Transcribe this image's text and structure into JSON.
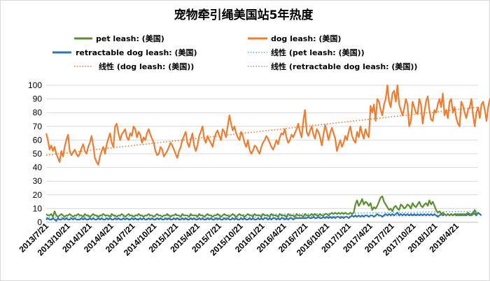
{
  "chart_data": {
    "type": "line",
    "title": "宠物牵引绳美国站5年热度",
    "xlabel": "",
    "ylabel": "",
    "ylim": [
      0,
      100
    ],
    "yticks": [
      0,
      10,
      20,
      30,
      40,
      50,
      60,
      70,
      80,
      90,
      100
    ],
    "grid": "horizontal",
    "legend_position": "top",
    "x_tick_labels": [
      "2013/7/21",
      "2013/10/21",
      "2014/1/21",
      "2014/4/21",
      "2014/7/21",
      "2014/10/21",
      "2015/1/21",
      "2015/4/21",
      "2015/7/21",
      "2015/10/21",
      "2016/1/21",
      "2016/4/21",
      "2016/7/21",
      "2016/10/21",
      "2017/1/21",
      "2017/4/21",
      "2017/7/21",
      "2017/10/21",
      "2018/1/21",
      "2018/4/21"
    ],
    "series": [
      {
        "name": "pet leash: (美国)",
        "color": "#5b8f2f",
        "style": "solid",
        "values": [
          6,
          5,
          5,
          6,
          4,
          8,
          5,
          4,
          5,
          6,
          5,
          4,
          5,
          5,
          6,
          5,
          4,
          5,
          5,
          6,
          5,
          5,
          4,
          6,
          5,
          5,
          4,
          5,
          6,
          5,
          5,
          4,
          5,
          5,
          6,
          5,
          5,
          5,
          4,
          6,
          5,
          5,
          4,
          5,
          5,
          6,
          5,
          4,
          5,
          6,
          5,
          5,
          4,
          5,
          5,
          6,
          5,
          5,
          4,
          5,
          5,
          6,
          5,
          5,
          4,
          5,
          6,
          5,
          5,
          4,
          5,
          5,
          6,
          5,
          4,
          5,
          5,
          6,
          5,
          5,
          4,
          6,
          5,
          5,
          5,
          4,
          6,
          5,
          5,
          5,
          4,
          6,
          5,
          5,
          4,
          5,
          6,
          5,
          5,
          4,
          5,
          5,
          6,
          5,
          4,
          5,
          6,
          5,
          5,
          4,
          5,
          6,
          5,
          4,
          5,
          6,
          5,
          5,
          4,
          5,
          6,
          5,
          5,
          4,
          6,
          5,
          5,
          5,
          4,
          6,
          5,
          5,
          5,
          4,
          6,
          5,
          5,
          5,
          4,
          6,
          5,
          5,
          5,
          4,
          6,
          5,
          5,
          5,
          4,
          6,
          5,
          5,
          5,
          4,
          6,
          5,
          5,
          5,
          6,
          5,
          6,
          5,
          5,
          6,
          5,
          5,
          6,
          6,
          5,
          6,
          7,
          6,
          7,
          6,
          7,
          6,
          7,
          6,
          7,
          6,
          6,
          7,
          6,
          7,
          13,
          16,
          12,
          14,
          17,
          13,
          15,
          14,
          12,
          14,
          9,
          11,
          10,
          12,
          15,
          18,
          19,
          15,
          13,
          11,
          9,
          10,
          8,
          11,
          12,
          10,
          9,
          13,
          12,
          10,
          11,
          13,
          12,
          10,
          14,
          12,
          11,
          13,
          15,
          12,
          11,
          13,
          14,
          12,
          16,
          13,
          15,
          12,
          9,
          7,
          8,
          6,
          7,
          6,
          5,
          6,
          5,
          6,
          5,
          6,
          6,
          5,
          6,
          5,
          6,
          5,
          6,
          7,
          6,
          5,
          6,
          9,
          6,
          7
        ]
      },
      {
        "name": "dog leash: (美国)",
        "color": "#ed7d31",
        "style": "solid",
        "values": [
          65,
          60,
          53,
          56,
          52,
          55,
          50,
          47,
          44,
          52,
          48,
          55,
          60,
          64,
          52,
          49,
          51,
          53,
          50,
          48,
          50,
          54,
          57,
          52,
          50,
          55,
          58,
          63,
          56,
          47,
          44,
          42,
          48,
          52,
          55,
          50,
          57,
          61,
          65,
          58,
          55,
          70,
          72,
          65,
          60,
          64,
          66,
          68,
          62,
          60,
          65,
          63,
          70,
          68,
          62,
          66,
          64,
          58,
          62,
          60,
          65,
          68,
          64,
          61,
          58,
          52,
          49,
          50,
          55,
          53,
          48,
          50,
          52,
          55,
          58,
          56,
          53,
          50,
          47,
          52,
          55,
          60,
          63,
          66,
          58,
          55,
          60,
          65,
          56,
          52,
          56,
          63,
          66,
          70,
          61,
          58,
          63,
          60,
          58,
          55,
          61,
          65,
          67,
          63,
          60,
          68,
          66,
          62,
          70,
          78,
          72,
          67,
          70,
          65,
          62,
          60,
          66,
          63,
          58,
          55,
          60,
          53,
          50,
          52,
          56,
          55,
          52,
          50,
          55,
          58,
          60,
          63,
          61,
          58,
          55,
          53,
          56,
          60,
          57,
          62,
          65,
          64,
          68,
          62,
          58,
          60,
          64,
          62,
          65,
          68,
          72,
          66,
          62,
          74,
          82,
          66,
          63,
          67,
          70,
          64,
          61,
          68,
          66,
          62,
          56,
          64,
          71,
          66,
          60,
          65,
          69,
          65,
          61,
          52,
          56,
          60,
          55,
          58,
          63,
          60,
          66,
          70,
          63,
          60,
          58,
          66,
          62,
          70,
          65,
          61,
          68,
          64,
          62,
          85,
          80,
          86,
          74,
          90,
          88,
          82,
          78,
          86,
          90,
          100,
          88,
          84,
          94,
          96,
          88,
          100,
          86,
          82,
          78,
          83,
          90,
          86,
          70,
          74,
          88,
          84,
          80,
          79,
          90,
          86,
          72,
          80,
          88,
          92,
          82,
          75,
          74,
          82,
          80,
          86,
          90,
          84,
          94,
          78,
          82,
          76,
          88,
          90,
          80,
          84,
          76,
          72,
          70,
          88,
          85,
          80,
          76,
          82,
          84,
          90,
          78,
          70,
          80,
          84,
          76,
          86,
          88,
          82,
          74,
          84,
          90,
          86,
          82,
          92,
          80,
          100,
          85,
          88
        ]
      },
      {
        "name": "retractable dog leash: (美国)",
        "color": "#2e75b6",
        "style": "solid",
        "values": [
          2,
          3,
          2,
          2,
          3,
          2,
          1,
          3,
          2,
          2,
          3,
          2,
          3,
          2,
          2,
          3,
          2,
          3,
          2,
          2,
          2,
          3,
          2,
          3,
          2,
          2,
          3,
          2,
          3,
          2,
          2,
          3,
          2,
          3,
          2,
          2,
          3,
          2,
          3,
          2,
          2,
          3,
          2,
          3,
          2,
          2,
          3,
          2,
          3,
          2,
          2,
          3,
          2,
          3,
          2,
          2,
          3,
          2,
          3,
          2,
          2,
          3,
          2,
          3,
          2,
          2,
          3,
          2,
          3,
          2,
          2,
          3,
          2,
          3,
          2,
          2,
          3,
          2,
          3,
          2,
          2,
          3,
          2,
          3,
          2,
          2,
          3,
          2,
          3,
          2,
          2,
          3,
          2,
          3,
          2,
          2,
          3,
          2,
          3,
          2,
          2,
          3,
          2,
          3,
          2,
          2,
          3,
          2,
          3,
          2,
          2,
          3,
          2,
          3,
          2,
          2,
          3,
          2,
          3,
          2,
          2,
          3,
          2,
          3,
          2,
          2,
          3,
          2,
          3,
          2,
          3,
          3,
          2,
          3,
          2,
          3,
          3,
          2,
          3,
          2,
          3,
          3,
          2,
          3,
          2,
          3,
          3,
          2,
          3,
          3,
          3,
          3,
          3,
          3,
          3,
          3,
          4,
          3,
          3,
          4,
          3,
          3,
          4,
          3,
          3,
          4,
          3,
          4,
          3,
          4,
          3,
          4,
          3,
          4,
          4,
          3,
          4,
          3,
          4,
          4,
          3,
          4,
          5,
          4,
          5,
          4,
          5,
          4,
          5,
          4,
          5,
          5,
          4,
          5,
          5,
          4,
          5,
          6,
          5,
          5,
          4,
          5,
          6,
          5,
          6,
          5,
          6,
          5,
          6,
          7,
          5,
          6,
          5,
          6,
          5,
          6,
          5,
          6,
          5,
          6,
          5,
          6,
          5,
          6,
          5,
          6,
          5,
          6,
          5,
          6,
          5,
          6,
          5,
          4,
          5,
          6,
          5,
          6,
          5,
          6,
          5,
          6,
          5,
          6,
          5,
          6,
          5,
          6,
          5,
          6,
          5,
          6,
          5,
          6,
          7,
          6,
          5,
          7,
          6,
          5
        ]
      }
    ],
    "trendlines": [
      {
        "name": "线性 (pet leash: (美国))",
        "color": "#5bb4c8",
        "style": "dotted",
        "from": 3.5,
        "to": 8.0
      },
      {
        "name": "线性 (dog leash: (美国))",
        "color": "#ed7d31",
        "style": "dotted",
        "from": 49.0,
        "to": 84.0
      },
      {
        "name": "线性 (retractable dog leash: (美国))",
        "color": "#7fa6c9",
        "style": "dotted",
        "from": 2.0,
        "to": 5.5
      }
    ]
  }
}
